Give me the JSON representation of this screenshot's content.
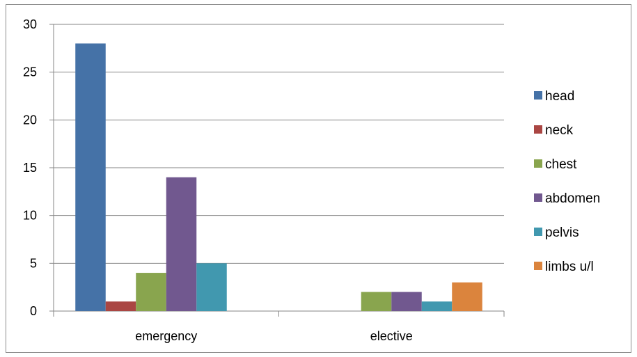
{
  "chart_data": {
    "type": "bar",
    "categories": [
      "emergency",
      "elective"
    ],
    "series": [
      {
        "name": "head",
        "values": [
          28,
          0
        ],
        "color": "#4572A7"
      },
      {
        "name": "neck",
        "values": [
          1,
          0
        ],
        "color": "#AA4643"
      },
      {
        "name": "chest",
        "values": [
          4,
          2
        ],
        "color": "#89A54E"
      },
      {
        "name": "abdomen",
        "values": [
          14,
          2
        ],
        "color": "#71588F"
      },
      {
        "name": "pelvis",
        "values": [
          5,
          1
        ],
        "color": "#4198AF"
      },
      {
        "name": "limbs u/l",
        "values": [
          0,
          3
        ],
        "color": "#DB843D"
      }
    ],
    "ylim": [
      0,
      30
    ],
    "yticks": [
      "0",
      "5",
      "10",
      "15",
      "20",
      "25",
      "30"
    ],
    "grid": true,
    "legend": "right",
    "title": "",
    "xlabel": "",
    "ylabel": ""
  }
}
